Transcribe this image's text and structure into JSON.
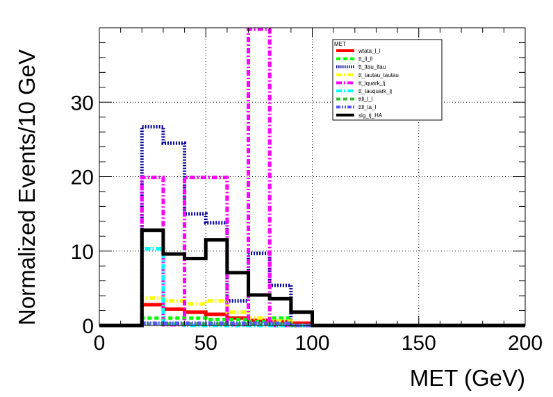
{
  "chart_data": {
    "type": "histogram",
    "title": "",
    "xlabel": "MET (GeV)",
    "ylabel": "Normalized Events/10 GeV",
    "xlim": [
      0,
      200
    ],
    "ylim": [
      0,
      40
    ],
    "x_ticks": [
      0,
      50,
      100,
      150,
      200
    ],
    "y_ticks": [
      0,
      10,
      20,
      30
    ],
    "bin_width": 10,
    "grid": true,
    "legend": {
      "title": "MET",
      "position": "top-right"
    },
    "series": [
      {
        "name": "wtata_l_l",
        "color": "#ff0000",
        "style": "solid",
        "bins": [
          [
            20,
            30,
            2.8
          ],
          [
            30,
            40,
            2.2
          ],
          [
            40,
            50,
            1.8
          ],
          [
            50,
            60,
            1.5
          ],
          [
            60,
            70,
            1.0
          ],
          [
            70,
            80,
            0.7
          ],
          [
            80,
            90,
            0.5
          ],
          [
            90,
            100,
            0.3
          ]
        ]
      },
      {
        "name": "tt_ll_ll",
        "color": "#00ff00",
        "style": "dashed",
        "bins": [
          [
            20,
            30,
            1.0
          ],
          [
            30,
            40,
            1.0
          ],
          [
            40,
            50,
            1.0
          ],
          [
            50,
            60,
            0.8
          ],
          [
            60,
            70,
            0.8
          ],
          [
            70,
            80,
            0.5
          ],
          [
            80,
            90,
            1.0
          ]
        ]
      },
      {
        "name": "tt_ltau_ltau",
        "color": "#000099",
        "style": "dotted",
        "bins": [
          [
            20,
            30,
            26.7
          ],
          [
            30,
            40,
            24.5
          ],
          [
            40,
            50,
            15.0
          ],
          [
            50,
            60,
            13.8
          ],
          [
            60,
            70,
            3.3
          ],
          [
            70,
            80,
            9.7
          ],
          [
            80,
            90,
            5.4
          ]
        ]
      },
      {
        "name": "tt_tautau_tautau",
        "color": "#ffff00",
        "style": "dashdot",
        "bins": [
          [
            20,
            30,
            3.7
          ],
          [
            30,
            40,
            3.3
          ],
          [
            40,
            50,
            2.9
          ],
          [
            50,
            60,
            3.3
          ],
          [
            60,
            70,
            1.8
          ],
          [
            70,
            80,
            1.0
          ],
          [
            80,
            90,
            0.6
          ]
        ]
      },
      {
        "name": "tt_lquark_lj",
        "color": "#ff00ff",
        "style": "dashdot",
        "bins": [
          [
            20,
            30,
            19.9
          ],
          [
            30,
            40,
            0.1
          ],
          [
            40,
            50,
            19.9
          ],
          [
            50,
            60,
            19.9
          ],
          [
            60,
            70,
            0.1
          ],
          [
            70,
            80,
            39.8
          ]
        ]
      },
      {
        "name": "tt_tauquark_lj",
        "color": "#00ffff",
        "style": "dashdot",
        "bins": [
          [
            20,
            30,
            10.3
          ],
          [
            30,
            40,
            0.2
          ]
        ]
      },
      {
        "name": "ttll_l_l",
        "color": "#33bb33",
        "style": "dashed",
        "bins": [
          [
            20,
            30,
            0.2
          ],
          [
            30,
            40,
            0.2
          ],
          [
            40,
            50,
            0.2
          ],
          [
            50,
            60,
            0.2
          ],
          [
            60,
            70,
            0.2
          ],
          [
            70,
            80,
            0.2
          ],
          [
            80,
            90,
            0.2
          ]
        ]
      },
      {
        "name": "ttll_ta_l",
        "color": "#5555ff",
        "style": "dashdotdot",
        "bins": [
          [
            20,
            30,
            0.3
          ],
          [
            30,
            40,
            0.3
          ],
          [
            40,
            50,
            0.3
          ],
          [
            50,
            60,
            0.3
          ],
          [
            60,
            70,
            0.3
          ],
          [
            70,
            80,
            0.3
          ],
          [
            80,
            90,
            0.3
          ]
        ]
      },
      {
        "name": "sig_tj_HA",
        "color": "#000000",
        "style": "solid",
        "bins": [
          [
            20,
            30,
            12.8
          ],
          [
            30,
            40,
            9.6
          ],
          [
            40,
            50,
            9.0
          ],
          [
            50,
            60,
            11.5
          ],
          [
            60,
            70,
            7.1
          ],
          [
            70,
            80,
            4.1
          ],
          [
            80,
            90,
            3.6
          ],
          [
            90,
            100,
            1.8
          ]
        ]
      }
    ]
  }
}
